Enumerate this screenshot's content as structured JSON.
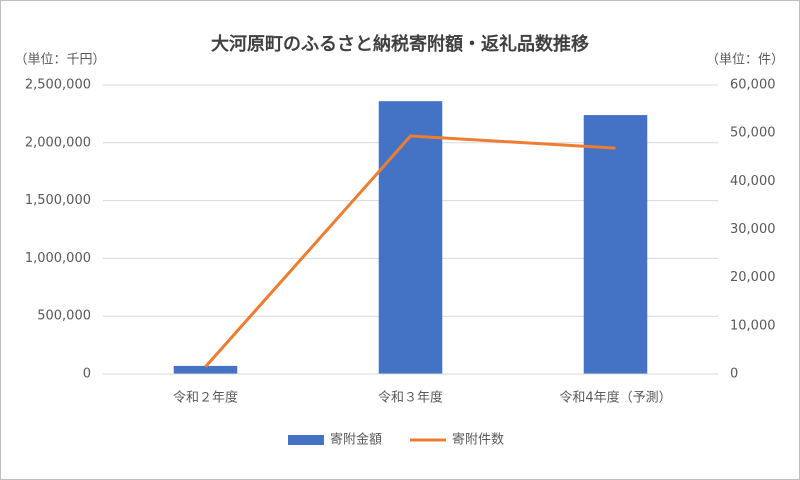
{
  "chart_data": {
    "type": "bar",
    "title": "大河原町のふるさと納税寄附額・返礼品数推移",
    "y_unit_label": "（単位：千円）",
    "y2_unit_label": "（単位：件）",
    "categories": [
      "令和２年度",
      "令和３年度",
      "令和4年度（予測）"
    ],
    "series": [
      {
        "name": "寄附金額",
        "type": "bar",
        "color": "#4472c4",
        "values": [
          70000,
          2360000,
          2240000
        ]
      },
      {
        "name": "寄附件数",
        "type": "line",
        "axis": "y2",
        "color": "#ed7d31",
        "values": [
          1500,
          49400,
          46900
        ]
      }
    ],
    "ylim": [
      0,
      2500000
    ],
    "yticks": [
      0,
      {
        "value": 500000,
        "label": "500,000"
      },
      {
        "value": 1000000,
        "label": "1,000,000"
      },
      {
        "value": 1500000,
        "label": "1,500,000"
      },
      {
        "value": 2000000,
        "label": "2,000,000"
      },
      {
        "value": 2500000,
        "label": "2,500,000"
      }
    ],
    "y2lim": [
      0,
      60000
    ],
    "y2ticks": [
      0,
      {
        "value": 10000,
        "label": "10,000"
      },
      {
        "value": 20000,
        "label": "20,000"
      },
      {
        "value": 30000,
        "label": "30,000"
      },
      {
        "value": 40000,
        "label": "40,000"
      },
      {
        "value": 50000,
        "label": "50,000"
      },
      {
        "value": 60000,
        "label": "60,000"
      }
    ],
    "grid": true,
    "legend": "bottom"
  }
}
